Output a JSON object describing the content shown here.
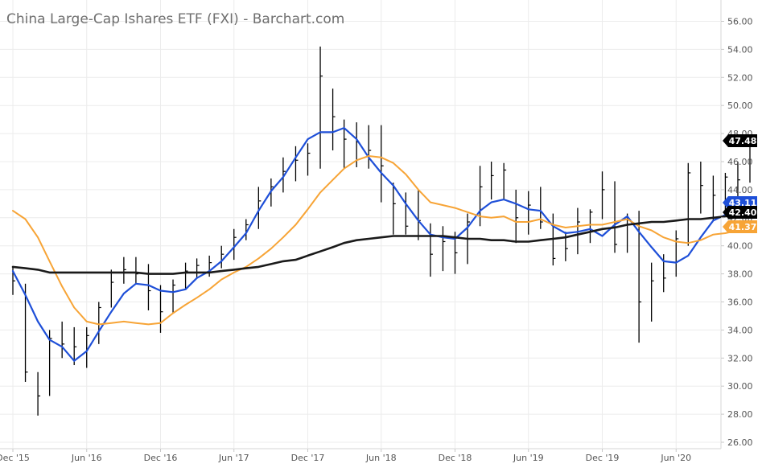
{
  "title": "China Large-Cap Ishares ETF (FXI) - Barchart.com",
  "chart_data": {
    "type": "line",
    "title": "China Large-Cap Ishares ETF (FXI) - Barchart.com",
    "xlabel": "",
    "ylabel": "",
    "ylim": [
      26,
      57
    ],
    "grid": true,
    "x_ticks": [
      "Dec '15",
      "Jun '16",
      "Dec '16",
      "Jun '17",
      "Dec '17",
      "Jun '18",
      "Dec '18",
      "Jun '19",
      "Dec '19",
      "Jun '20"
    ],
    "y_ticks": [
      "26.00",
      "28.00",
      "30.00",
      "32.00",
      "34.00",
      "36.00",
      "38.00",
      "40.00",
      "42.00",
      "44.00",
      "46.00",
      "48.00",
      "50.00",
      "52.00",
      "54.00",
      "56.00"
    ],
    "price_labels": [
      {
        "value": "47.48",
        "color": "#000000",
        "text_color": "#ffffff"
      },
      {
        "value": "43.11",
        "color": "#1e4fd8",
        "text_color": "#ffffff"
      },
      {
        "value": "42.40",
        "color": "#000000",
        "text_color": "#ffffff"
      },
      {
        "value": "41.37",
        "color": "#f7a436",
        "text_color": "#ffffff"
      }
    ],
    "price_bars": {
      "color": "#000000",
      "x": [
        "2015-12-01",
        "2016-01-01",
        "2016-02-01",
        "2016-03-01",
        "2016-04-01",
        "2016-05-01",
        "2016-06-01",
        "2016-07-01",
        "2016-08-01",
        "2016-09-01",
        "2016-10-01",
        "2016-11-01",
        "2016-12-01",
        "2017-01-01",
        "2017-02-01",
        "2017-03-01",
        "2017-04-01",
        "2017-05-01",
        "2017-06-01",
        "2017-07-01",
        "2017-08-01",
        "2017-09-01",
        "2017-10-01",
        "2017-11-01",
        "2017-12-01",
        "2018-01-01",
        "2018-02-01",
        "2018-03-01",
        "2018-04-01",
        "2018-05-01",
        "2018-06-01",
        "2018-07-01",
        "2018-08-01",
        "2018-09-01",
        "2018-10-01",
        "2018-11-01",
        "2018-12-01",
        "2019-01-01",
        "2019-02-01",
        "2019-03-01",
        "2019-04-01",
        "2019-05-01",
        "2019-06-01",
        "2019-07-01",
        "2019-08-01",
        "2019-09-01",
        "2019-10-01",
        "2019-11-01",
        "2019-12-01",
        "2020-01-01",
        "2020-02-01",
        "2020-03-01",
        "2020-04-01",
        "2020-05-01",
        "2020-06-01",
        "2020-07-01",
        "2020-08-01",
        "2020-09-01",
        "2020-10-01",
        "2020-11-01",
        "2020-12-01"
      ],
      "close": [
        37.5,
        31.0,
        29.3,
        33.4,
        33.0,
        32.8,
        33.6,
        35.6,
        37.4,
        38.3,
        38.0,
        36.8,
        35.3,
        37.2,
        38.2,
        38.6,
        38.8,
        39.4,
        40.6,
        41.5,
        43.2,
        44.2,
        45.3,
        46.1,
        46.6,
        52.1,
        49.2,
        47.6,
        47.4,
        46.8,
        45.7,
        43.0,
        41.4,
        41.8,
        39.4,
        40.3,
        39.5,
        41.7,
        44.2,
        45.0,
        45.4,
        42.0,
        42.9,
        41.7,
        39.1,
        39.8,
        41.7,
        42.4,
        44.0,
        40.1,
        41.5,
        36.0,
        37.5,
        37.7,
        40.5,
        45.2,
        44.3,
        43.6,
        44.9,
        44.7,
        47.5
      ],
      "high": [
        38.5,
        37.3,
        31.0,
        34.0,
        34.6,
        34.2,
        34.2,
        36.0,
        38.3,
        39.2,
        39.2,
        38.7,
        37.2,
        37.6,
        38.8,
        39.1,
        39.3,
        40.0,
        41.2,
        41.9,
        44.2,
        44.8,
        46.3,
        47.1,
        47.3,
        54.2,
        51.2,
        49.0,
        48.8,
        48.6,
        48.6,
        44.5,
        43.8,
        44.0,
        41.6,
        41.4,
        41.0,
        42.3,
        45.7,
        46.0,
        45.9,
        44.0,
        43.9,
        44.2,
        42.3,
        41.0,
        42.7,
        42.6,
        45.3,
        44.6,
        42.3,
        42.5,
        38.8,
        39.4,
        41.1,
        45.9,
        46.0,
        45.0,
        45.2,
        46.0,
        47.9
      ],
      "low": [
        36.5,
        30.3,
        27.9,
        29.3,
        32.0,
        31.5,
        31.3,
        33.0,
        35.6,
        37.3,
        37.3,
        35.4,
        33.8,
        35.2,
        36.9,
        37.7,
        37.8,
        38.4,
        39.0,
        40.4,
        41.2,
        42.8,
        43.8,
        44.6,
        45.0,
        45.5,
        46.8,
        45.5,
        45.6,
        45.5,
        43.1,
        40.8,
        40.8,
        40.4,
        37.8,
        38.2,
        38.0,
        38.7,
        41.4,
        43.3,
        43.3,
        40.2,
        40.8,
        41.2,
        38.6,
        38.9,
        39.4,
        40.2,
        41.9,
        39.5,
        39.5,
        33.1,
        34.6,
        36.7,
        37.8,
        40.0,
        42.3,
        41.8,
        42.4,
        43.0,
        44.5
      ]
    },
    "series": [
      {
        "color": "#1e4fd8",
        "x": [
          "2015-12-01",
          "2016-01-01",
          "2016-02-01",
          "2016-03-01",
          "2016-04-01",
          "2016-05-01",
          "2016-06-01",
          "2016-07-01",
          "2016-08-01",
          "2016-09-01",
          "2016-10-01",
          "2016-11-01",
          "2016-12-01",
          "2017-01-01",
          "2017-02-01",
          "2017-03-01",
          "2017-04-01",
          "2017-05-01",
          "2017-06-01",
          "2017-07-01",
          "2017-08-01",
          "2017-09-01",
          "2017-10-01",
          "2017-11-01",
          "2017-12-01",
          "2018-01-01",
          "2018-02-01",
          "2018-03-01",
          "2018-04-01",
          "2018-05-01",
          "2018-06-01",
          "2018-07-01",
          "2018-08-01",
          "2018-09-01",
          "2018-10-01",
          "2018-11-01",
          "2018-12-01",
          "2019-01-01",
          "2019-02-01",
          "2019-03-01",
          "2019-04-01",
          "2019-05-01",
          "2019-06-01",
          "2019-07-01",
          "2019-08-01",
          "2019-09-01",
          "2019-10-01",
          "2019-11-01",
          "2019-12-01",
          "2020-01-01",
          "2020-02-01",
          "2020-03-01",
          "2020-04-01",
          "2020-05-01",
          "2020-06-01",
          "2020-07-01",
          "2020-08-01",
          "2020-09-01",
          "2020-10-01",
          "2020-11-01",
          "2020-12-01"
        ],
        "values": [
          38.2,
          36.5,
          34.6,
          33.3,
          32.8,
          31.8,
          32.5,
          33.9,
          35.3,
          36.6,
          37.3,
          37.2,
          36.8,
          36.7,
          36.9,
          37.7,
          38.2,
          38.9,
          39.9,
          40.9,
          42.5,
          43.9,
          44.9,
          46.3,
          47.6,
          48.1,
          48.1,
          48.4,
          47.6,
          46.3,
          45.2,
          44.3,
          43.0,
          41.8,
          40.8,
          40.6,
          40.5,
          41.3,
          42.5,
          43.1,
          43.3,
          43.0,
          42.6,
          42.5,
          41.4,
          40.9,
          41.0,
          41.2,
          40.7,
          41.5,
          42.1,
          41.0,
          39.9,
          38.9,
          38.8,
          39.3,
          40.6,
          41.8,
          42.2,
          42.6,
          43.1
        ]
      },
      {
        "color": "#f7a436",
        "x": [
          "2015-12-01",
          "2016-01-01",
          "2016-02-01",
          "2016-03-01",
          "2016-04-01",
          "2016-05-01",
          "2016-06-01",
          "2016-07-01",
          "2016-08-01",
          "2016-09-01",
          "2016-10-01",
          "2016-11-01",
          "2016-12-01",
          "2017-01-01",
          "2017-02-01",
          "2017-03-01",
          "2017-04-01",
          "2017-05-01",
          "2017-06-01",
          "2017-07-01",
          "2017-08-01",
          "2017-09-01",
          "2017-10-01",
          "2017-11-01",
          "2017-12-01",
          "2018-01-01",
          "2018-02-01",
          "2018-03-01",
          "2018-04-01",
          "2018-05-01",
          "2018-06-01",
          "2018-07-01",
          "2018-08-01",
          "2018-09-01",
          "2018-10-01",
          "2018-11-01",
          "2018-12-01",
          "2019-01-01",
          "2019-02-01",
          "2019-03-01",
          "2019-04-01",
          "2019-05-01",
          "2019-06-01",
          "2019-07-01",
          "2019-08-01",
          "2019-09-01",
          "2019-10-01",
          "2019-11-01",
          "2019-12-01",
          "2020-01-01",
          "2020-02-01",
          "2020-03-01",
          "2020-04-01",
          "2020-05-01",
          "2020-06-01",
          "2020-07-01",
          "2020-08-01",
          "2020-09-01",
          "2020-10-01",
          "2020-11-01",
          "2020-12-01"
        ],
        "values": [
          42.5,
          41.9,
          40.6,
          38.9,
          37.1,
          35.6,
          34.6,
          34.4,
          34.5,
          34.6,
          34.5,
          34.4,
          34.5,
          35.2,
          35.8,
          36.3,
          36.9,
          37.6,
          38.1,
          38.5,
          39.1,
          39.8,
          40.6,
          41.5,
          42.6,
          43.8,
          44.7,
          45.5,
          46.1,
          46.4,
          46.3,
          45.9,
          45.1,
          44.0,
          43.1,
          42.9,
          42.7,
          42.4,
          42.1,
          42.0,
          42.1,
          41.7,
          41.7,
          41.9,
          41.5,
          41.3,
          41.4,
          41.5,
          41.5,
          41.7,
          41.9,
          41.4,
          41.1,
          40.6,
          40.3,
          40.2,
          40.4,
          40.8,
          40.9,
          41.1,
          41.4
        ]
      },
      {
        "color": "#1a1a1a",
        "x": [
          "2015-12-01",
          "2016-01-01",
          "2016-02-01",
          "2016-03-01",
          "2016-04-01",
          "2016-05-01",
          "2016-06-01",
          "2016-07-01",
          "2016-08-01",
          "2016-09-01",
          "2016-10-01",
          "2016-11-01",
          "2016-12-01",
          "2017-01-01",
          "2017-02-01",
          "2017-03-01",
          "2017-04-01",
          "2017-05-01",
          "2017-06-01",
          "2017-07-01",
          "2017-08-01",
          "2017-09-01",
          "2017-10-01",
          "2017-11-01",
          "2017-12-01",
          "2018-01-01",
          "2018-02-01",
          "2018-03-01",
          "2018-04-01",
          "2018-05-01",
          "2018-06-01",
          "2018-07-01",
          "2018-08-01",
          "2018-09-01",
          "2018-10-01",
          "2018-11-01",
          "2018-12-01",
          "2019-01-01",
          "2019-02-01",
          "2019-03-01",
          "2019-04-01",
          "2019-05-01",
          "2019-06-01",
          "2019-07-01",
          "2019-08-01",
          "2019-09-01",
          "2019-10-01",
          "2019-11-01",
          "2019-12-01",
          "2020-01-01",
          "2020-02-01",
          "2020-03-01",
          "2020-04-01",
          "2020-05-01",
          "2020-06-01",
          "2020-07-01",
          "2020-08-01",
          "2020-09-01",
          "2020-10-01",
          "2020-11-01",
          "2020-12-01"
        ],
        "values": [
          38.5,
          38.4,
          38.3,
          38.1,
          38.1,
          38.1,
          38.1,
          38.1,
          38.1,
          38.1,
          38.1,
          38.0,
          38.0,
          38.0,
          38.1,
          38.1,
          38.1,
          38.2,
          38.3,
          38.4,
          38.5,
          38.7,
          38.9,
          39.0,
          39.3,
          39.6,
          39.9,
          40.2,
          40.4,
          40.5,
          40.6,
          40.7,
          40.7,
          40.7,
          40.7,
          40.7,
          40.6,
          40.5,
          40.5,
          40.4,
          40.4,
          40.3,
          40.3,
          40.4,
          40.5,
          40.6,
          40.8,
          41.0,
          41.2,
          41.3,
          41.5,
          41.6,
          41.7,
          41.7,
          41.8,
          41.9,
          41.9,
          42.0,
          42.1,
          42.2,
          42.4
        ]
      }
    ]
  }
}
